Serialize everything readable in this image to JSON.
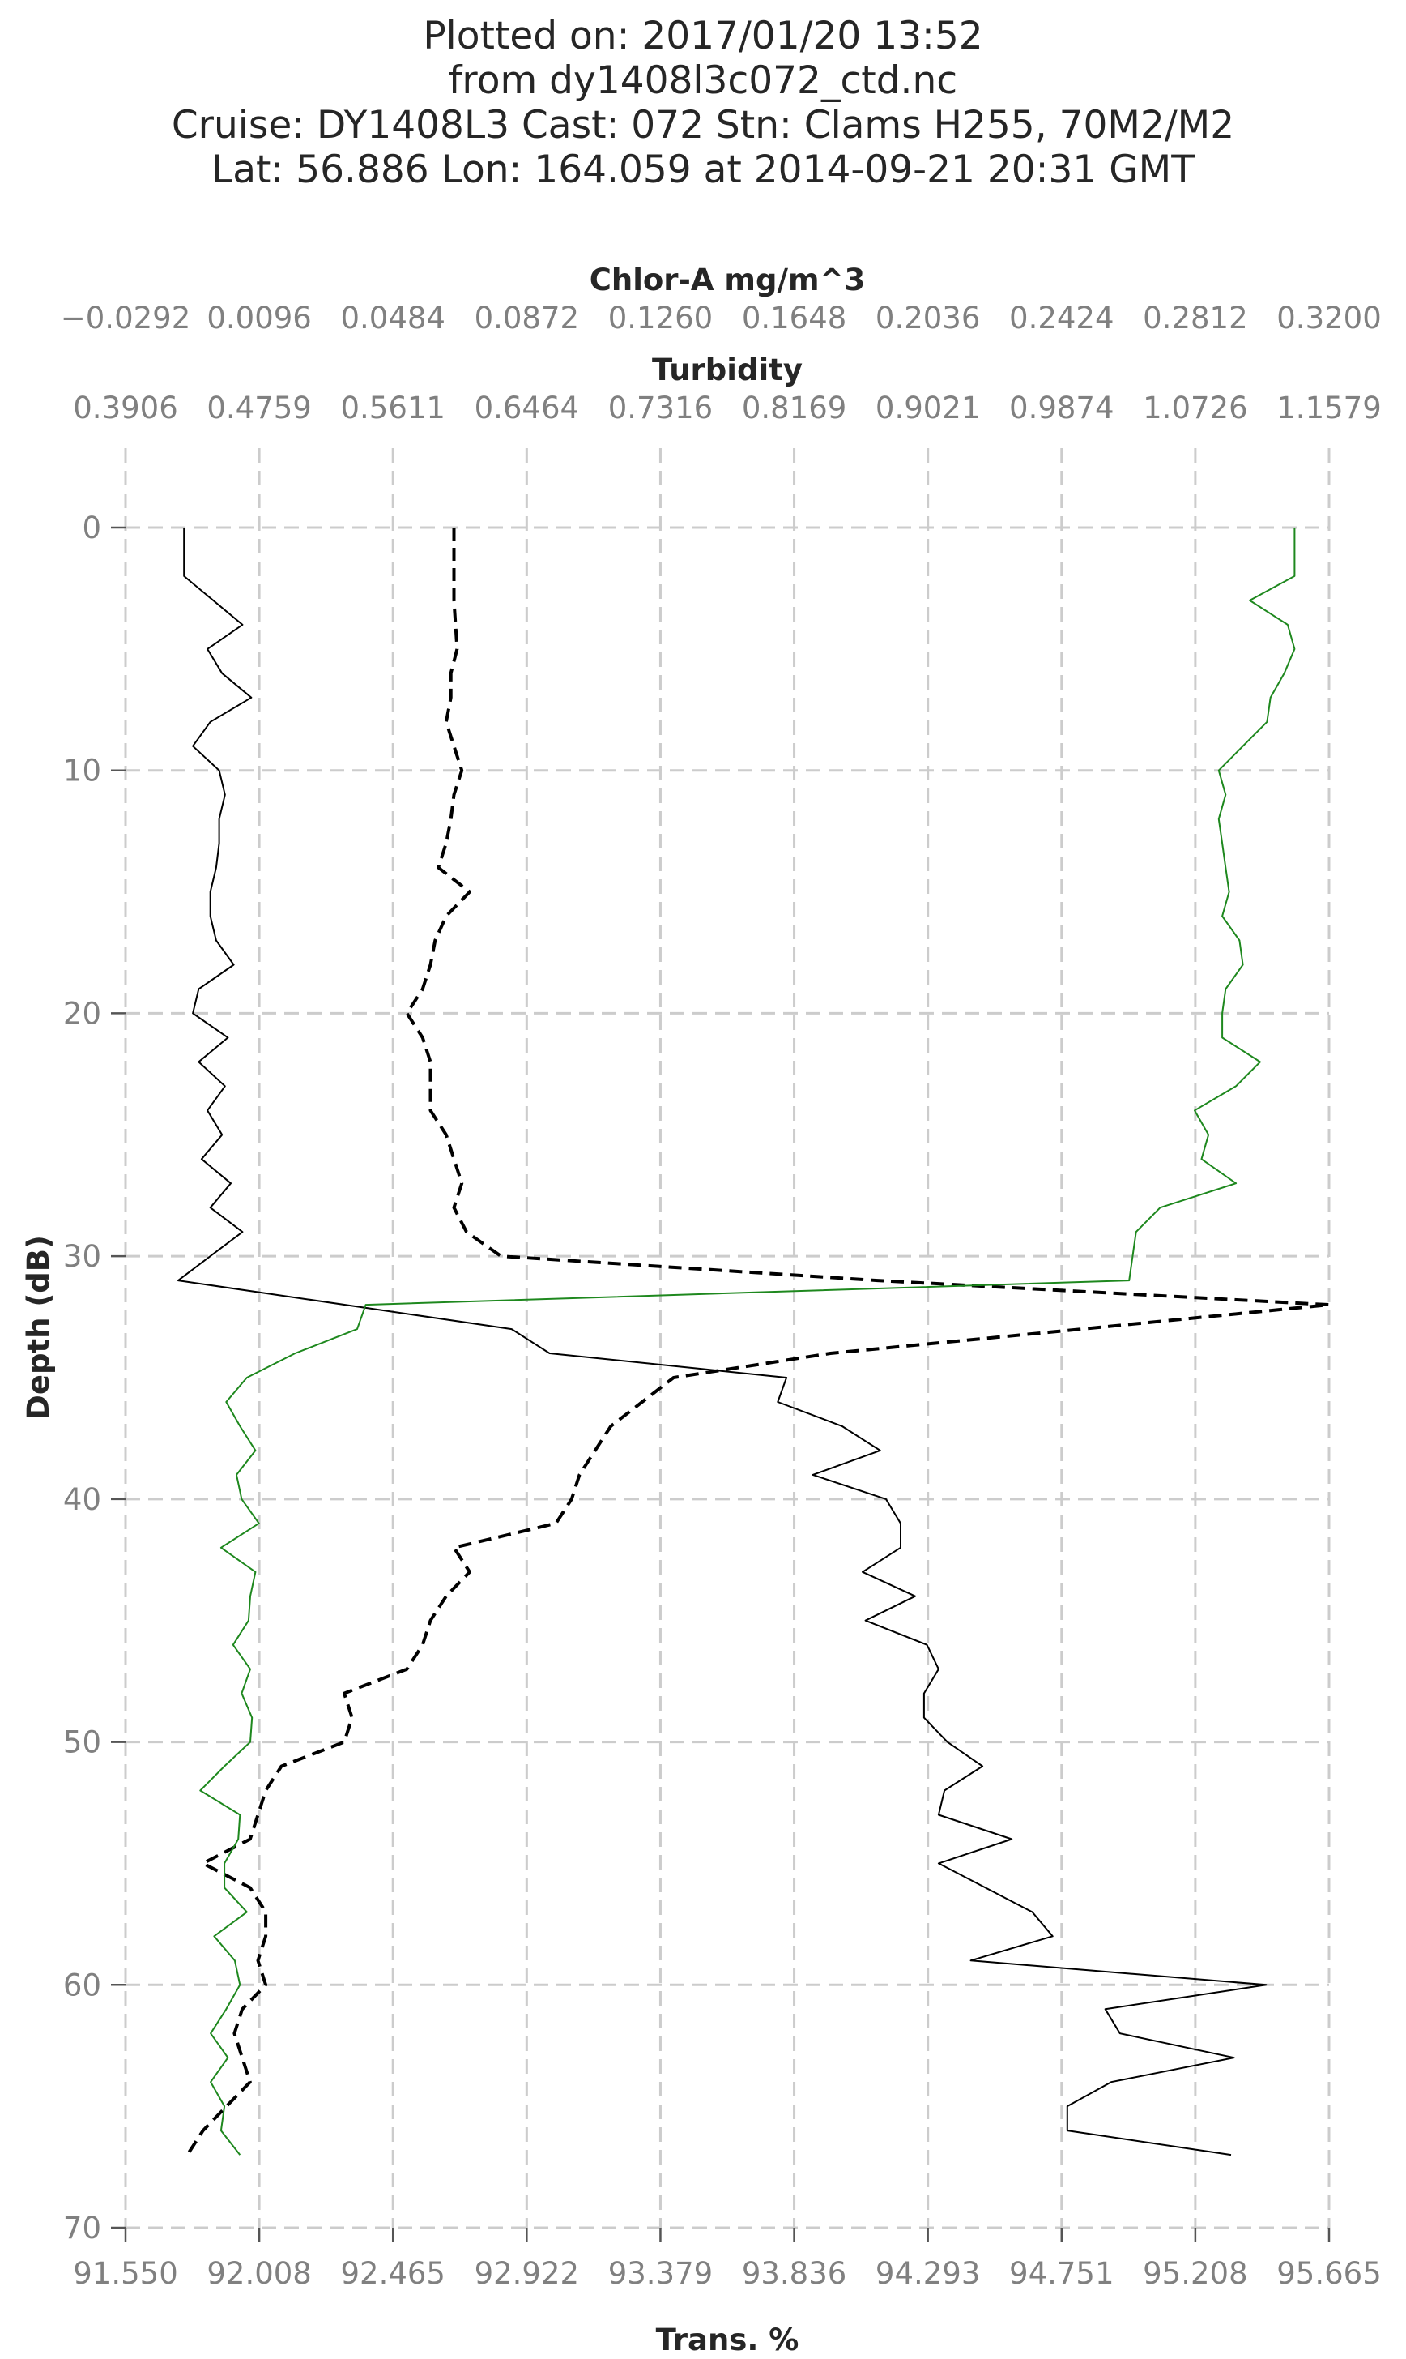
{
  "chart_data": {
    "type": "line",
    "title_lines": [
      "Plotted on: 2017/01/20 13:52",
      "from dy1408l3c072_ctd.nc",
      "Cruise: DY1408L3  Cast: 072  Stn: Clams H255, 70M2/M2",
      "Lat: 56.886  Lon: 164.059 at 2014-09-21 20:31 GMT"
    ],
    "ylabel": "Depth (dB)",
    "ylim": [
      70,
      0
    ],
    "yticks": [
      "0",
      "10",
      "20",
      "30",
      "40",
      "50",
      "60",
      "70"
    ],
    "grid": true,
    "axes": {
      "trans": {
        "label": "Trans. %",
        "ticks": [
          "91.550",
          "92.008",
          "92.465",
          "92.922",
          "93.379",
          "93.836",
          "94.293",
          "94.751",
          "95.208",
          "95.665"
        ],
        "range": [
          91.55,
          95.665
        ]
      },
      "turbidity": {
        "label": "Turbidity",
        "ticks": [
          "0.3906",
          "0.4759",
          "0.5611",
          "0.6464",
          "0.7316",
          "0.8169",
          "0.9021",
          "0.9874",
          "1.0726",
          "1.1579"
        ],
        "range": [
          0.3906,
          1.1579
        ]
      },
      "chlor": {
        "label": "Chlor-A mg/m^3",
        "ticks": [
          "−0.0292",
          "0.0096",
          "0.0484",
          "0.0872",
          "0.1260",
          "0.1648",
          "0.2036",
          "0.2424",
          "0.2812",
          "0.3200"
        ],
        "range": [
          -0.0292,
          0.32
        ]
      }
    },
    "series": [
      {
        "axis": "trans",
        "color": "#000000",
        "style": "solid",
        "depth": [
          0,
          2,
          4,
          5,
          6,
          7,
          8,
          9,
          10,
          11,
          12,
          13,
          14,
          15,
          16,
          17,
          18,
          19,
          20,
          21,
          22,
          23,
          24,
          25,
          26,
          27,
          28,
          29,
          30,
          31,
          33,
          34,
          35,
          36,
          37,
          38,
          39,
          40,
          41,
          42,
          43,
          44,
          45,
          46,
          47,
          48,
          49,
          50,
          51,
          52,
          53,
          54,
          55,
          56,
          57,
          58,
          59,
          60,
          61,
          62,
          63,
          64,
          65,
          66,
          67
        ],
        "values": [
          91.75,
          91.75,
          91.95,
          91.83,
          91.88,
          91.98,
          91.84,
          91.78,
          91.87,
          91.89,
          91.87,
          91.87,
          91.86,
          91.84,
          91.84,
          91.86,
          91.92,
          91.8,
          91.78,
          91.9,
          91.8,
          91.89,
          91.83,
          91.88,
          91.81,
          91.91,
          91.84,
          91.95,
          91.84,
          91.73,
          92.87,
          93.0,
          93.81,
          93.78,
          94.0,
          94.13,
          93.9,
          94.15,
          94.2,
          94.2,
          94.07,
          94.25,
          94.08,
          94.29,
          94.33,
          94.28,
          94.28,
          94.36,
          94.48,
          94.35,
          94.33,
          94.58,
          94.33,
          94.49,
          94.65,
          94.72,
          94.44,
          95.45,
          94.9,
          94.95,
          95.34,
          94.92,
          94.77,
          94.77,
          95.33
        ]
      },
      {
        "axis": "turbidity",
        "color": "#000000",
        "style": "dashed",
        "depth": [
          0,
          3,
          5,
          6,
          7,
          8,
          9,
          10,
          11,
          12,
          13,
          14,
          15,
          16,
          17,
          18,
          19,
          20,
          21,
          22,
          23,
          24,
          25,
          26,
          27,
          28,
          29,
          30,
          31,
          32,
          33,
          34,
          35,
          36,
          37,
          38,
          39,
          40,
          41,
          42,
          43,
          44,
          45,
          46,
          47,
          48,
          49,
          50,
          51,
          52,
          53,
          54,
          55,
          56,
          57,
          58,
          59,
          60,
          61,
          62,
          63,
          64,
          65,
          66,
          67
        ],
        "values": [
          0.6,
          0.6,
          0.602,
          0.598,
          0.598,
          0.595,
          0.6,
          0.605,
          0.6,
          0.598,
          0.595,
          0.59,
          0.61,
          0.595,
          0.588,
          0.585,
          0.58,
          0.57,
          0.58,
          0.585,
          0.585,
          0.585,
          0.595,
          0.6,
          0.605,
          0.6,
          0.608,
          0.63,
          0.87,
          1.1579,
          1.0,
          0.84,
          0.74,
          0.72,
          0.7,
          0.69,
          0.68,
          0.675,
          0.665,
          0.6,
          0.61,
          0.595,
          0.585,
          0.58,
          0.57,
          0.53,
          0.535,
          0.53,
          0.49,
          0.48,
          0.475,
          0.47,
          0.44,
          0.47,
          0.48,
          0.48,
          0.475,
          0.48,
          0.465,
          0.46,
          0.465,
          0.47,
          0.455,
          0.44,
          0.43
        ]
      },
      {
        "axis": "chlor",
        "color": "#1e881e",
        "style": "solid",
        "depth": [
          0,
          2,
          3,
          4,
          5,
          6,
          7,
          8,
          9,
          10,
          11,
          12,
          13,
          14,
          15,
          16,
          17,
          18,
          19,
          20,
          21,
          22,
          23,
          24,
          25,
          26,
          27,
          28,
          29,
          31,
          32,
          33,
          34,
          35,
          36,
          37,
          38,
          39,
          40,
          41,
          42,
          43,
          44,
          45,
          46,
          47,
          48,
          49,
          50,
          51,
          52,
          53,
          54,
          55,
          56,
          57,
          58,
          59,
          60,
          61,
          62,
          63,
          64,
          65,
          66,
          67
        ],
        "values": [
          0.31,
          0.31,
          0.297,
          0.308,
          0.31,
          0.307,
          0.303,
          0.302,
          0.295,
          0.288,
          0.29,
          0.288,
          0.289,
          0.29,
          0.291,
          0.289,
          0.294,
          0.295,
          0.29,
          0.289,
          0.289,
          0.3,
          0.293,
          0.281,
          0.285,
          0.283,
          0.293,
          0.271,
          0.264,
          0.262,
          0.0405,
          0.038,
          0.02,
          0.006,
          0.0,
          0.004,
          0.0085,
          0.003,
          0.0045,
          0.0095,
          -0.0015,
          0.0085,
          0.007,
          0.0065,
          0.002,
          0.007,
          0.0045,
          0.0075,
          0.007,
          -0.0005,
          -0.0075,
          0.004,
          0.0035,
          -0.0005,
          -0.0005,
          0.006,
          -0.0035,
          0.0025,
          0.004,
          0.0,
          -0.0045,
          0.0005,
          -0.0045,
          -0.0005,
          -0.0015,
          0.004
        ]
      }
    ]
  }
}
